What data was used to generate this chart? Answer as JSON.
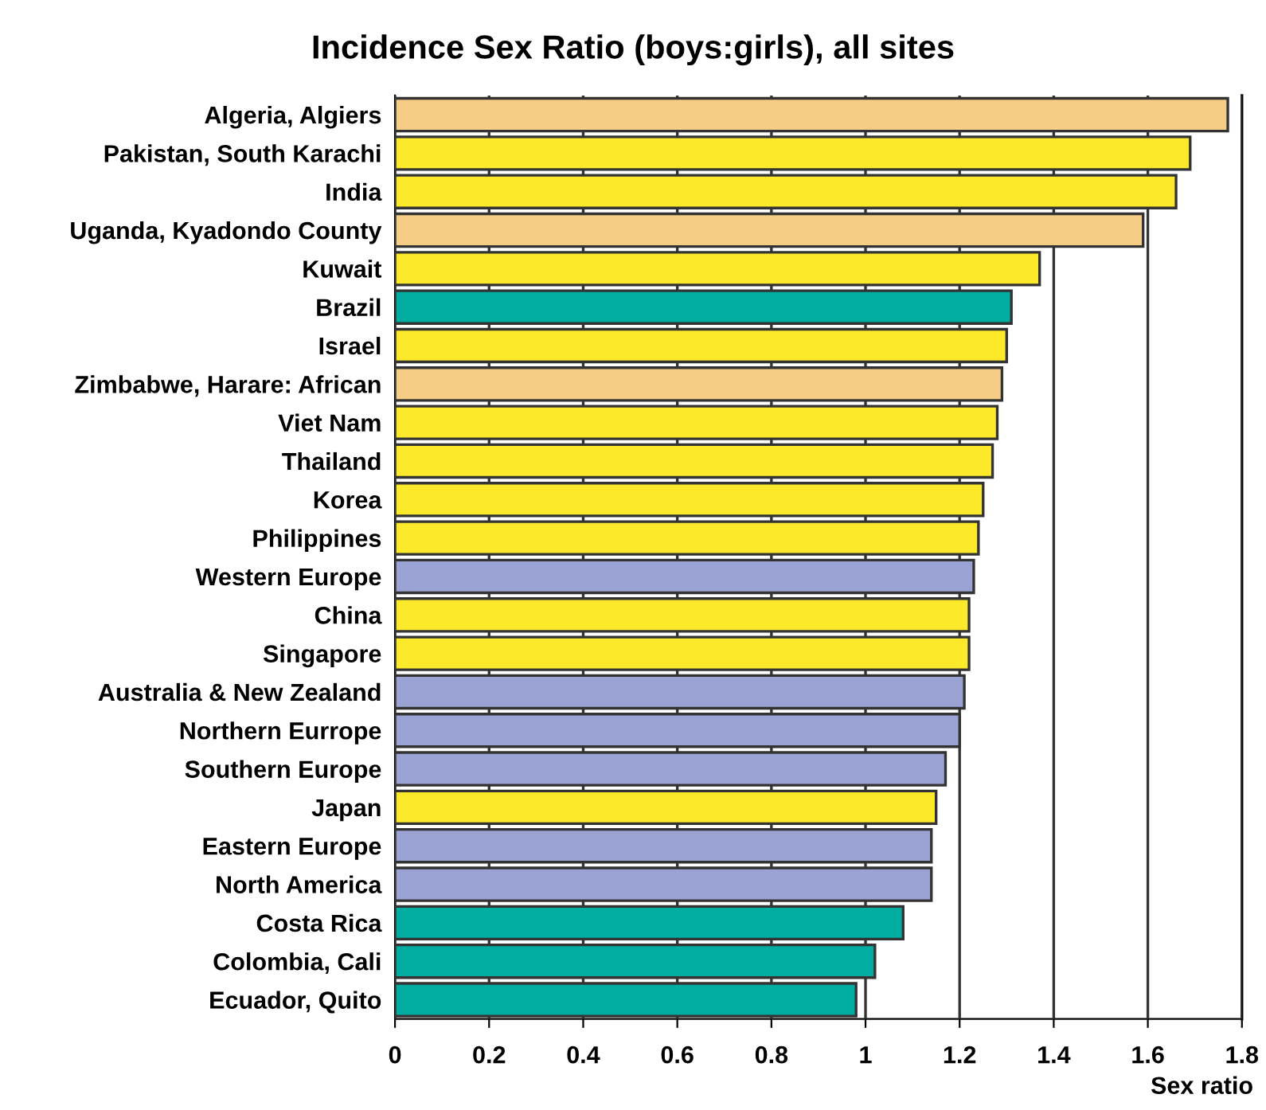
{
  "chart_data": {
    "type": "bar",
    "orientation": "horizontal",
    "title": "Incidence Sex Ratio (boys:girls), all sites",
    "xlabel": "Sex ratio",
    "categories": [
      "Algeria, Algiers",
      "Pakistan, South Karachi",
      "India",
      "Uganda, Kyadondo County",
      "Kuwait",
      "Brazil",
      "Israel",
      "Zimbabwe, Harare: African",
      "Viet Nam",
      "Thailand",
      "Korea",
      "Philippines",
      "Western Europe",
      "China",
      "Singapore",
      "Australia & New Zealand",
      "Northern Eurrope",
      "Southern Europe",
      "Japan",
      "Eastern Europe",
      "North America",
      "Costa Rica",
      "Colombia, Cali",
      "Ecuador, Quito"
    ],
    "values": [
      1.77,
      1.69,
      1.66,
      1.59,
      1.37,
      1.31,
      1.3,
      1.29,
      1.28,
      1.27,
      1.25,
      1.24,
      1.23,
      1.22,
      1.22,
      1.21,
      1.2,
      1.17,
      1.15,
      1.14,
      1.14,
      1.08,
      1.02,
      0.98
    ],
    "colors": [
      "#f6cd86",
      "#fbe92a",
      "#fbe92a",
      "#f6cd86",
      "#fbe92a",
      "#00ada0",
      "#fbe92a",
      "#f6cd86",
      "#fbe92a",
      "#fbe92a",
      "#fbe92a",
      "#fbe92a",
      "#9ba3d4",
      "#fbe92a",
      "#fbe92a",
      "#9ba3d4",
      "#9ba3d4",
      "#9ba3d4",
      "#fbe92a",
      "#9ba3d4",
      "#9ba3d4",
      "#00ada0",
      "#00ada0",
      "#00ada0"
    ],
    "xlim": [
      0,
      1.8
    ],
    "xticks": [
      0,
      0.2,
      0.4,
      0.6,
      0.8,
      1,
      1.2,
      1.4,
      1.6,
      1.8
    ],
    "grid": "x",
    "legend": false
  }
}
